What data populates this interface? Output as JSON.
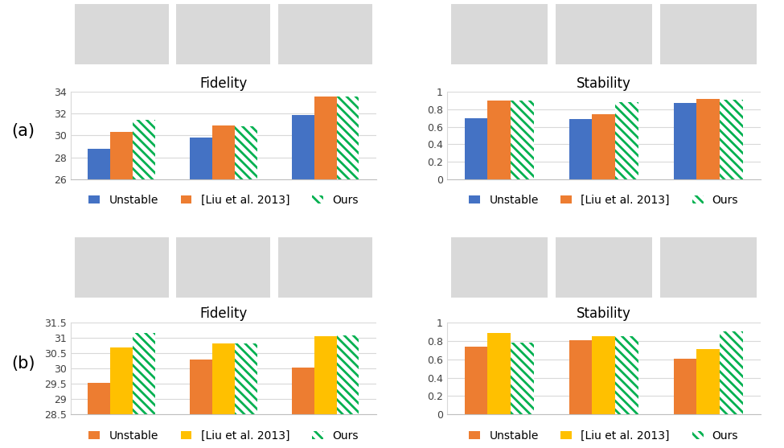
{
  "chart_data": [
    {
      "type": "bar",
      "title": "Fidelity",
      "annotation": "(a)",
      "categories": [
        null,
        null,
        null
      ],
      "series": [
        {
          "name": "Unstable",
          "color": "#4472c4",
          "values": [
            28.8,
            29.8,
            31.85
          ]
        },
        {
          "name": "[Liu et al. 2013]",
          "color": "#ed7d31",
          "values": [
            30.3,
            30.9,
            33.6
          ]
        },
        {
          "name": "Ours",
          "color": "#00b050",
          "values": [
            31.45,
            30.85,
            33.55
          ]
        }
      ],
      "ylim": [
        26,
        34
      ],
      "yticks": [
        26,
        28,
        30,
        32,
        34
      ],
      "grid": true,
      "legend": "bottom"
    },
    {
      "type": "bar",
      "title": "Stability",
      "categories": [
        null,
        null,
        null
      ],
      "series": [
        {
          "name": "Unstable",
          "color": "#4472c4",
          "values": [
            0.7,
            0.69,
            0.87
          ]
        },
        {
          "name": "[Liu et al. 2013]",
          "color": "#ed7d31",
          "values": [
            0.9,
            0.74,
            0.92
          ]
        },
        {
          "name": "Ours",
          "color": "#00b050",
          "values": [
            0.9,
            0.88,
            0.91
          ]
        }
      ],
      "ylim": [
        0,
        1
      ],
      "yticks": [
        0,
        0.2,
        0.4,
        0.6,
        0.8,
        1
      ],
      "grid": true,
      "legend": "bottom"
    },
    {
      "type": "bar",
      "title": "Fidelity",
      "annotation": "(b)",
      "categories": [
        null,
        null,
        null
      ],
      "series": [
        {
          "name": "Unstable",
          "color": "#ed7d31",
          "values": [
            29.52,
            30.3,
            30.03
          ]
        },
        {
          "name": "[Liu et al. 2013]",
          "color": "#ffc000",
          "values": [
            30.68,
            30.82,
            31.05
          ]
        },
        {
          "name": "Ours",
          "color": "#00b050",
          "values": [
            31.15,
            30.83,
            31.08
          ]
        }
      ],
      "ylim": [
        28.5,
        31.5
      ],
      "yticks": [
        28.5,
        29,
        29.5,
        30,
        30.5,
        31,
        31.5
      ],
      "grid": true,
      "legend": "bottom"
    },
    {
      "type": "bar",
      "title": "Stability",
      "categories": [
        null,
        null,
        null
      ],
      "series": [
        {
          "name": "Unstable",
          "color": "#ed7d31",
          "values": [
            0.74,
            0.81,
            0.61
          ]
        },
        {
          "name": "[Liu et al. 2013]",
          "color": "#ffc000",
          "values": [
            0.89,
            0.85,
            0.71
          ]
        },
        {
          "name": "Ours",
          "color": "#00b050",
          "values": [
            0.78,
            0.85,
            0.9
          ]
        }
      ],
      "ylim": [
        0,
        1
      ],
      "yticks": [
        0,
        0.2,
        0.4,
        0.6,
        0.8,
        1
      ],
      "grid": true,
      "legend": "bottom"
    }
  ]
}
